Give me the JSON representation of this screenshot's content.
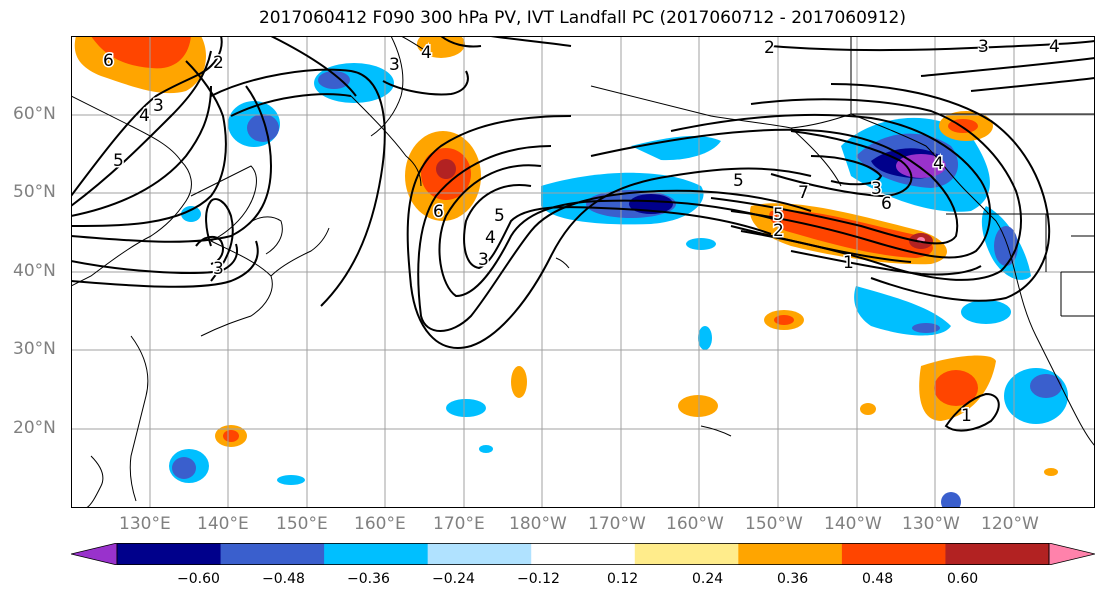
{
  "title": "2017060412 F090 300 hPa PV, IVT Landfall PC (2017060712 - 2017060912)",
  "lat_labels": [
    "60°N",
    "50°N",
    "40°N",
    "30°N",
    "20°N"
  ],
  "lon_labels": [
    "130°E",
    "140°E",
    "150°E",
    "160°E",
    "170°E",
    "180°W",
    "170°W",
    "160°W",
    "150°W",
    "140°W",
    "130°W",
    "120°W"
  ],
  "contour_labels": [
    "6",
    "4",
    "3",
    "5",
    "2",
    "3",
    "4",
    "2",
    "3",
    "4",
    "3",
    "6",
    "4",
    "3",
    "5",
    "5",
    "7",
    "6",
    "4",
    "5",
    "2",
    "1",
    "1",
    "3"
  ],
  "colorbar": {
    "colors": [
      "#9932cc",
      "#00008b",
      "#3a5fcd",
      "#00bfff",
      "#b0e2ff",
      "#ffffff",
      "#ffec8b",
      "#ffa500",
      "#ff4500",
      "#b22222",
      "#ff82ab"
    ],
    "tick_labels": [
      "−0.60",
      "−0.48",
      "−0.36",
      "−0.24",
      "−0.12",
      "0.12",
      "0.24",
      "0.36",
      "0.48",
      "0.60"
    ]
  }
}
